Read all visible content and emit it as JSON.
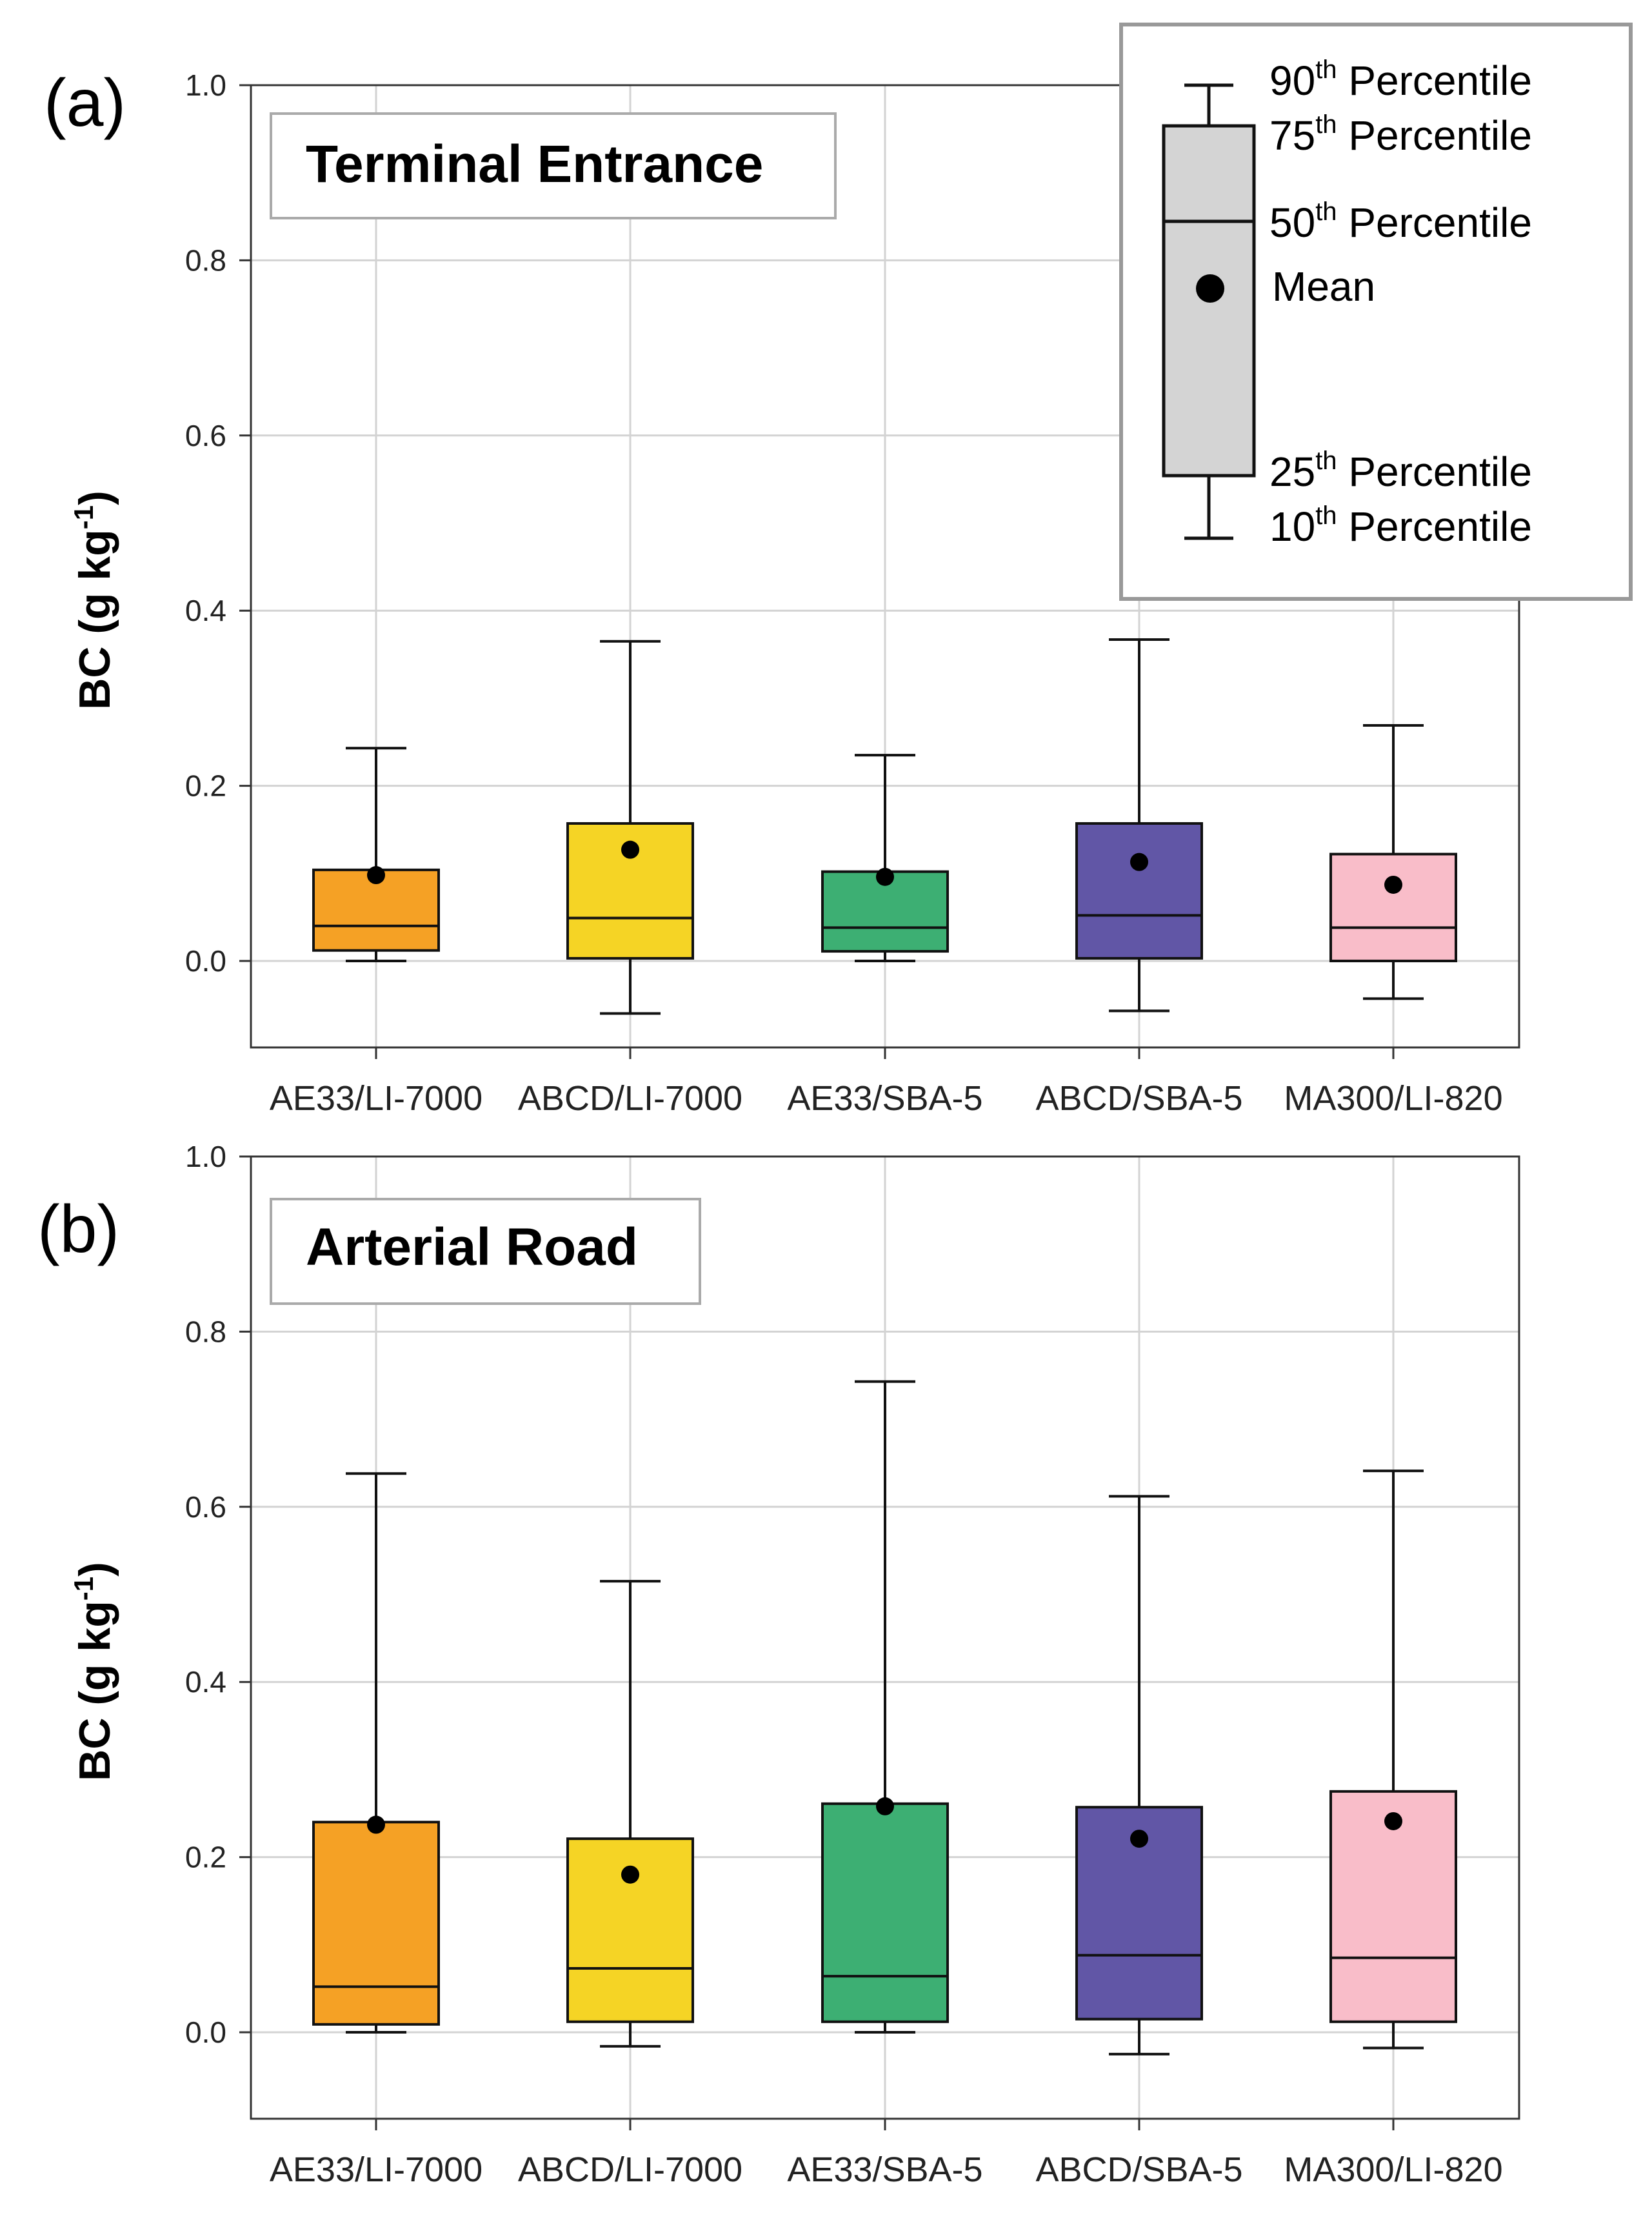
{
  "chart_data": [
    {
      "type": "box",
      "panel_label": "(a)",
      "title": "Terminal Entrance",
      "ylabel": "BC (g kg",
      "ylabel_sup": "-1",
      "ylabel_end": ")",
      "ylim": [
        -0.1,
        1.0
      ],
      "yticks": [
        "0.0",
        "0.2",
        "0.4",
        "0.6",
        "0.8",
        "1.0"
      ],
      "categories": [
        "AE33/LI-7000",
        "ABCD/LI-7000",
        "AE33/SBA-5",
        "ABCD/SBA-5",
        "MA300/LI-820"
      ],
      "colors": [
        "#F5A125",
        "#F5D425",
        "#3DAF73",
        "#6156A6",
        "#F9BDC9"
      ],
      "boxes": [
        {
          "p10": 0.0,
          "p25": 0.012,
          "p50": 0.04,
          "p75": 0.104,
          "p90": 0.243,
          "mean": 0.098
        },
        {
          "p10": -0.06,
          "p25": 0.003,
          "p50": 0.049,
          "p75": 0.157,
          "p90": 0.365,
          "mean": 0.127
        },
        {
          "p10": 0.0,
          "p25": 0.011,
          "p50": 0.038,
          "p75": 0.102,
          "p90": 0.235,
          "mean": 0.096
        },
        {
          "p10": -0.057,
          "p25": 0.003,
          "p50": 0.052,
          "p75": 0.157,
          "p90": 0.367,
          "mean": 0.113
        },
        {
          "p10": -0.043,
          "p25": 0.0,
          "p50": 0.038,
          "p75": 0.122,
          "p90": 0.269,
          "mean": 0.087
        }
      ]
    },
    {
      "type": "box",
      "panel_label": "(b)",
      "title": "Arterial Road",
      "ylabel": "BC (g kg",
      "ylabel_sup": "-1",
      "ylabel_end": ")",
      "ylim": [
        -0.1,
        1.0
      ],
      "yticks": [
        "0.0",
        "0.2",
        "0.4",
        "0.6",
        "0.8",
        "1.0"
      ],
      "categories": [
        "AE33/LI-7000",
        "ABCD/LI-7000",
        "AE33/SBA-5",
        "ABCD/SBA-5",
        "MA300/LI-820"
      ],
      "colors": [
        "#F5A125",
        "#F5D425",
        "#3DAF73",
        "#6156A6",
        "#F9BDC9"
      ],
      "boxes": [
        {
          "p10": 0.0,
          "p25": 0.009,
          "p50": 0.052,
          "p75": 0.24,
          "p90": 0.638,
          "mean": 0.237
        },
        {
          "p10": -0.016,
          "p25": 0.012,
          "p50": 0.073,
          "p75": 0.221,
          "p90": 0.515,
          "mean": 0.18
        },
        {
          "p10": 0.0,
          "p25": 0.012,
          "p50": 0.064,
          "p75": 0.261,
          "p90": 0.743,
          "mean": 0.258
        },
        {
          "p10": -0.025,
          "p25": 0.015,
          "p50": 0.088,
          "p75": 0.257,
          "p90": 0.612,
          "mean": 0.221
        },
        {
          "p10": -0.018,
          "p25": 0.012,
          "p50": 0.085,
          "p75": 0.275,
          "p90": 0.641,
          "mean": 0.241
        }
      ]
    }
  ],
  "legend": {
    "p90": {
      "num": "90",
      "sup": "th",
      "text": " Percentile"
    },
    "p75": {
      "num": "75",
      "sup": "th",
      "text": " Percentile"
    },
    "p50": {
      "num": "50",
      "sup": "th",
      "text": " Percentile"
    },
    "mean": "Mean",
    "p25": {
      "num": "25",
      "sup": "th",
      "text": " Percentile"
    },
    "p10": {
      "num": "10",
      "sup": "th",
      "text": " Percentile"
    },
    "box_color": "#D4D4D4"
  }
}
